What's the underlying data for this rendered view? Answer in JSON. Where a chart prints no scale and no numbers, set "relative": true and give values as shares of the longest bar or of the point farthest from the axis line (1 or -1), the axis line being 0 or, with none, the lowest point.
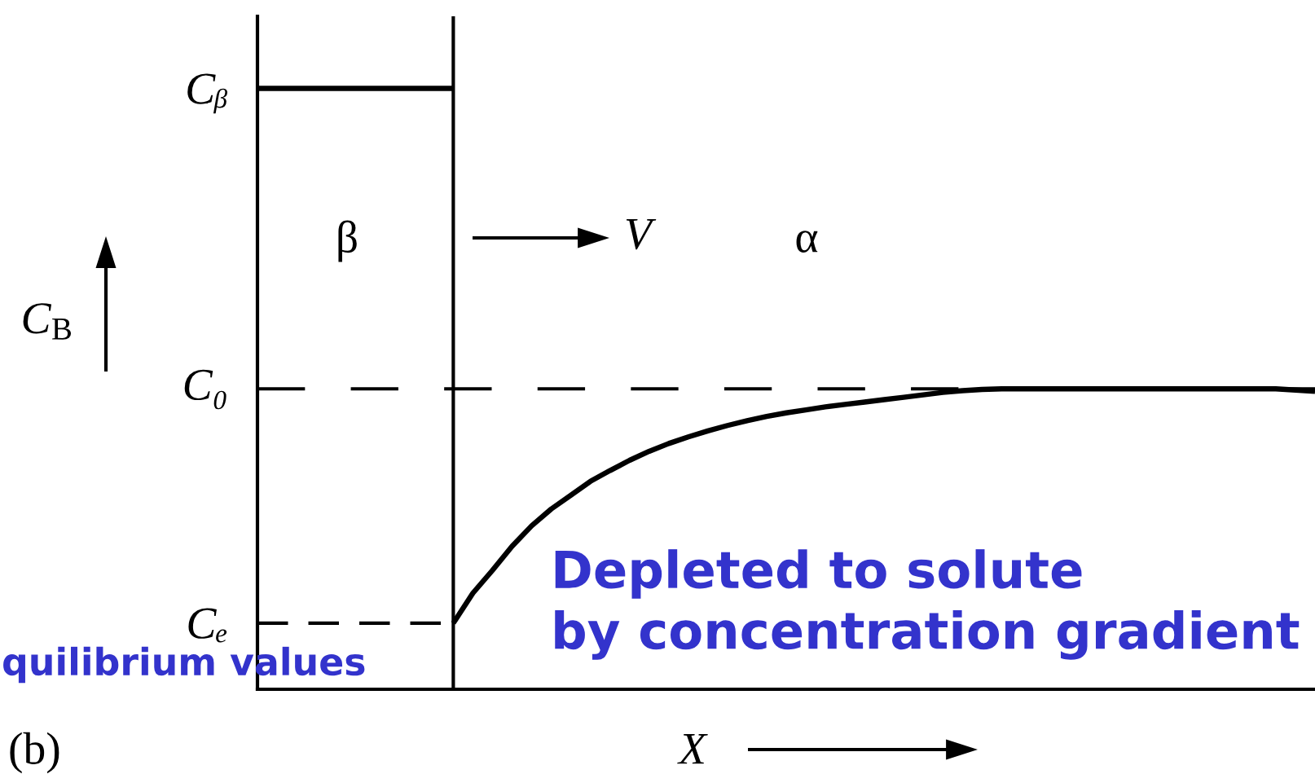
{
  "chart_data": {
    "type": "line",
    "relative": true,
    "xlabel": "X",
    "ylabel": "C$_{B}$",
    "categories": [
      null,
      null,
      null,
      null,
      null,
      null,
      null,
      null,
      null,
      null,
      null,
      null,
      null,
      null,
      null,
      null,
      null,
      null,
      null,
      null,
      null,
      null,
      null,
      null,
      null,
      null,
      null,
      null,
      null,
      null,
      null,
      null,
      null,
      null,
      null,
      null,
      null,
      null,
      null,
      null,
      null,
      null,
      null,
      null,
      null,
      null,
      null,
      null,
      null,
      null,
      null,
      null,
      null,
      null,
      null
    ],
    "series": [
      {
        "color": "#000000",
        "values": [
          1,
          1,
          1,
          1,
          1,
          1,
          1,
          1,
          1,
          1,
          1,
          null,
          null,
          null,
          null,
          null,
          null,
          null,
          null,
          null,
          null,
          null,
          null,
          null,
          null,
          null,
          null,
          null,
          null,
          null,
          null,
          null,
          null,
          null,
          null,
          null,
          null,
          null,
          null,
          null,
          null,
          null,
          null,
          null,
          null,
          null,
          null,
          null,
          null,
          null,
          null,
          null,
          null,
          null,
          null
        ]
      },
      {
        "color": "#000000",
        "values": [
          null,
          null,
          null,
          null,
          null,
          null,
          null,
          null,
          null,
          null,
          0.11,
          0.16,
          0.198,
          0.238,
          0.272,
          0.3,
          0.323,
          0.346,
          0.364,
          0.381,
          0.396,
          0.409,
          0.42,
          0.43,
          0.439,
          0.447,
          0.454,
          0.46,
          0.465,
          0.47,
          0.474,
          0.478,
          0.482,
          0.486,
          0.49,
          0.494,
          0.497,
          0.499,
          0.5,
          0.5,
          0.5,
          0.5,
          0.5,
          0.5,
          0.5,
          0.5,
          0.5,
          0.5,
          0.5,
          0.5,
          0.5,
          0.5,
          0.5,
          0.498,
          0.496
        ]
      },
      {
        "color": "#000000",
        "line_style": "dashed",
        "values": [
          0.11,
          0.11,
          0.11,
          0.11,
          0.11,
          0.11,
          0.11,
          0.11,
          0.11,
          0.11,
          0.11,
          null,
          null,
          null,
          null,
          null,
          null,
          null,
          null,
          null,
          null,
          null,
          null,
          null,
          null,
          null,
          null,
          null,
          null,
          null,
          null,
          null,
          null,
          null,
          null,
          null,
          null,
          null,
          null,
          null,
          null,
          null,
          null,
          null,
          null,
          null,
          null,
          null,
          null,
          null,
          null,
          null,
          null,
          null,
          null
        ]
      }
    ],
    "ref_lines": [
      {
        "axis": "y",
        "value": 0.5,
        "label": "C₀",
        "color": "#000000",
        "line_style": "dashed"
      }
    ],
    "annotations": [
      "Cᵦ",
      "Cₑ",
      "β",
      "V",
      "α",
      "Depleted to solute\nby concentration gradient",
      "quilibrium values",
      "(b)"
    ],
    "line_style": "solid"
  }
}
